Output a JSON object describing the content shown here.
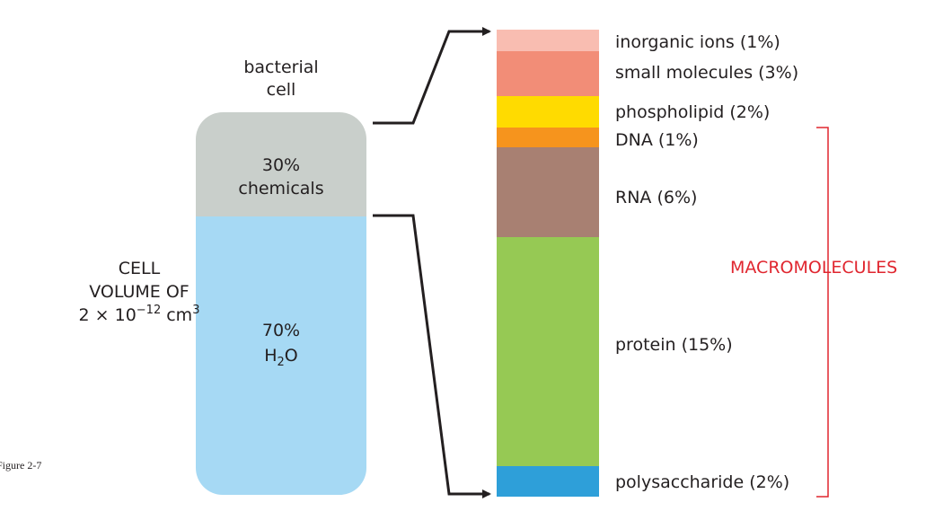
{
  "cell": {
    "label": [
      "bacterial",
      "cell"
    ],
    "chemicals": {
      "percent": "30%",
      "label": "chemicals"
    },
    "water": {
      "percent": "70%",
      "formula": {
        "element": "H",
        "subscript": "2",
        "tail": "O"
      }
    }
  },
  "volume": {
    "lines": [
      "CELL",
      "VOLUME OF"
    ],
    "value": {
      "base": "2 × 10",
      "exponent": "−12",
      "unit": "cm",
      "unit_exponent": "3"
    }
  },
  "components": [
    "inorganic ions (1%)",
    "small molecules (3%)",
    "phospholipid (2%)",
    "DNA (1%)",
    "RNA (6%)",
    "protein (15%)",
    "polysaccharide (2%)"
  ],
  "bracket_label": "MACROMOLECULES",
  "figure_label": "Figure 2-7"
}
